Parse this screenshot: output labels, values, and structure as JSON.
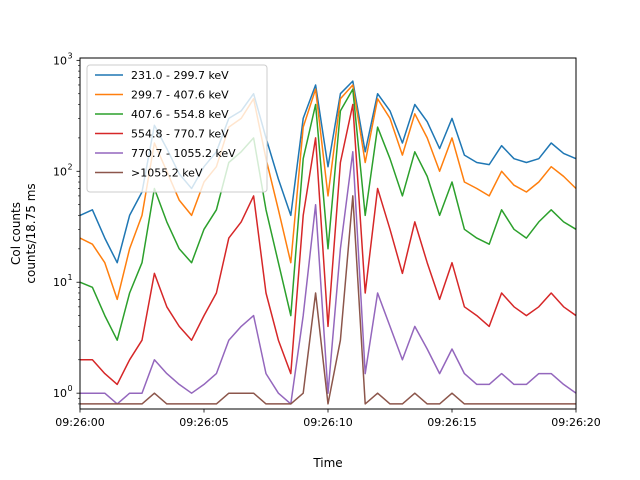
{
  "chart_data": {
    "type": "line",
    "title": "",
    "xlabel": "Time",
    "ylabel_lines": [
      "Col counts",
      "counts/18.75 ms"
    ],
    "x_start": "09:26:00",
    "x_end": "09:26:20",
    "xlim": [
      0,
      20
    ],
    "xticks": [
      0,
      5,
      10,
      15,
      20
    ],
    "xtick_labels": [
      "09:26:00",
      "09:26:05",
      "09:26:10",
      "09:26:15",
      "09:26:20"
    ],
    "ylim": [
      0.72,
      1050
    ],
    "yscale": "log",
    "yticks": [
      1,
      10,
      100,
      1000
    ],
    "ytick_labels": [
      "10",
      "10",
      "10",
      "10"
    ],
    "ytick_exponents": [
      "0",
      "1",
      "2",
      "3"
    ],
    "grid": false,
    "legend_position": "top-left",
    "series": [
      {
        "name": "231.0 - 299.7 keV",
        "color": "#1f77b4",
        "x": [
          0,
          0.5,
          1,
          1.5,
          2,
          2.5,
          3,
          3.5,
          4,
          4.5,
          5,
          5.5,
          6,
          6.5,
          7,
          7.5,
          8,
          8.5,
          9,
          9.5,
          10,
          10.5,
          11,
          11.5,
          12,
          12.5,
          13,
          13.5,
          14,
          14.5,
          15,
          15.5,
          16,
          16.5,
          17,
          17.5,
          18,
          18.5,
          19,
          19.5,
          20
        ],
        "y": [
          40,
          45,
          25,
          15,
          40,
          65,
          260,
          160,
          95,
          70,
          110,
          150,
          300,
          350,
          500,
          200,
          85,
          40,
          300,
          600,
          110,
          500,
          650,
          150,
          500,
          350,
          180,
          400,
          280,
          160,
          300,
          140,
          120,
          115,
          170,
          130,
          120,
          130,
          180,
          145,
          130
        ]
      },
      {
        "name": "299.7 - 407.6 keV",
        "color": "#ff7f0e",
        "x": [
          0,
          0.5,
          1,
          1.5,
          2,
          2.5,
          3,
          3.5,
          4,
          4.5,
          5,
          5.5,
          6,
          6.5,
          7,
          7.5,
          8,
          8.5,
          9,
          9.5,
          10,
          10.5,
          11,
          11.5,
          12,
          12.5,
          13,
          13.5,
          14,
          14.5,
          15,
          15.5,
          16,
          16.5,
          17,
          17.5,
          18,
          18.5,
          19,
          19.5,
          20
        ],
        "y": [
          25,
          22,
          15,
          7,
          20,
          40,
          180,
          100,
          55,
          40,
          80,
          110,
          250,
          300,
          450,
          130,
          45,
          15,
          250,
          550,
          60,
          450,
          600,
          120,
          450,
          300,
          140,
          330,
          200,
          100,
          200,
          80,
          70,
          60,
          100,
          75,
          65,
          80,
          110,
          90,
          70
        ]
      },
      {
        "name": "407.6 - 554.8 keV",
        "color": "#2ca02c",
        "x": [
          0,
          0.5,
          1,
          1.5,
          2,
          2.5,
          3,
          3.5,
          4,
          4.5,
          5,
          5.5,
          6,
          6.5,
          7,
          7.5,
          8,
          8.5,
          9,
          9.5,
          10,
          10.5,
          11,
          11.5,
          12,
          12.5,
          13,
          13.5,
          14,
          14.5,
          15,
          15.5,
          16,
          16.5,
          17,
          17.5,
          18,
          18.5,
          19,
          19.5,
          20
        ],
        "y": [
          10,
          9,
          5,
          3,
          8,
          15,
          70,
          35,
          20,
          15,
          30,
          45,
          120,
          150,
          200,
          45,
          15,
          5,
          130,
          400,
          20,
          350,
          550,
          40,
          250,
          130,
          60,
          150,
          90,
          40,
          80,
          30,
          25,
          22,
          45,
          30,
          25,
          35,
          45,
          35,
          30
        ]
      },
      {
        "name": "554.8 - 770.7 keV",
        "color": "#d62728",
        "x": [
          0,
          0.5,
          1,
          1.5,
          2,
          2.5,
          3,
          3.5,
          4,
          4.5,
          5,
          5.5,
          6,
          6.5,
          7,
          7.5,
          8,
          8.5,
          9,
          9.5,
          10,
          10.5,
          11,
          11.5,
          12,
          12.5,
          13,
          13.5,
          14,
          14.5,
          15,
          15.5,
          16,
          16.5,
          17,
          17.5,
          18,
          18.5,
          19,
          19.5,
          20
        ],
        "y": [
          2,
          2,
          1.5,
          1.2,
          2,
          3,
          12,
          6,
          4,
          3,
          5,
          8,
          25,
          35,
          60,
          8,
          3,
          1.5,
          40,
          200,
          4,
          120,
          400,
          8,
          70,
          30,
          12,
          35,
          15,
          7,
          15,
          6,
          5,
          4,
          8,
          6,
          5,
          6,
          8,
          6,
          5
        ]
      },
      {
        "name": "770.7 - 1055.2 keV",
        "color": "#9467bd",
        "x": [
          0,
          0.5,
          1,
          1.5,
          2,
          2.5,
          3,
          3.5,
          4,
          4.5,
          5,
          5.5,
          6,
          6.5,
          7,
          7.5,
          8,
          8.5,
          9,
          9.5,
          10,
          10.5,
          11,
          11.5,
          12,
          12.5,
          13,
          13.5,
          14,
          14.5,
          15,
          15.5,
          16,
          16.5,
          17,
          17.5,
          18,
          18.5,
          19,
          19.5,
          20
        ],
        "y": [
          1,
          1,
          1,
          0.8,
          1,
          1,
          2,
          1.5,
          1.2,
          1,
          1.2,
          1.5,
          3,
          4,
          5,
          1.5,
          1,
          0.8,
          5,
          50,
          1,
          20,
          150,
          1.5,
          8,
          4,
          2,
          4,
          2.5,
          1.5,
          2.5,
          1.5,
          1.2,
          1.2,
          1.5,
          1.2,
          1.2,
          1.5,
          1.5,
          1.2,
          1
        ]
      },
      {
        "name": ">1055.2 keV",
        "color": "#8c564b",
        "x": [
          0,
          0.5,
          1,
          1.5,
          2,
          2.5,
          3,
          3.5,
          4,
          4.5,
          5,
          5.5,
          6,
          6.5,
          7,
          7.5,
          8,
          8.5,
          9,
          9.5,
          10,
          10.5,
          11,
          11.5,
          12,
          12.5,
          13,
          13.5,
          14,
          14.5,
          15,
          15.5,
          16,
          16.5,
          17,
          17.5,
          18,
          18.5,
          19,
          19.5,
          20
        ],
        "y": [
          0.8,
          0.8,
          0.8,
          0.8,
          0.8,
          0.8,
          1,
          0.8,
          0.8,
          0.8,
          0.8,
          0.8,
          1,
          1,
          1,
          0.8,
          0.8,
          0.8,
          1,
          8,
          0.8,
          3,
          60,
          0.8,
          1,
          0.8,
          0.8,
          1,
          0.8,
          0.8,
          1,
          0.8,
          0.8,
          0.8,
          0.8,
          0.8,
          0.8,
          0.8,
          0.8,
          0.8,
          0.8
        ]
      }
    ]
  }
}
